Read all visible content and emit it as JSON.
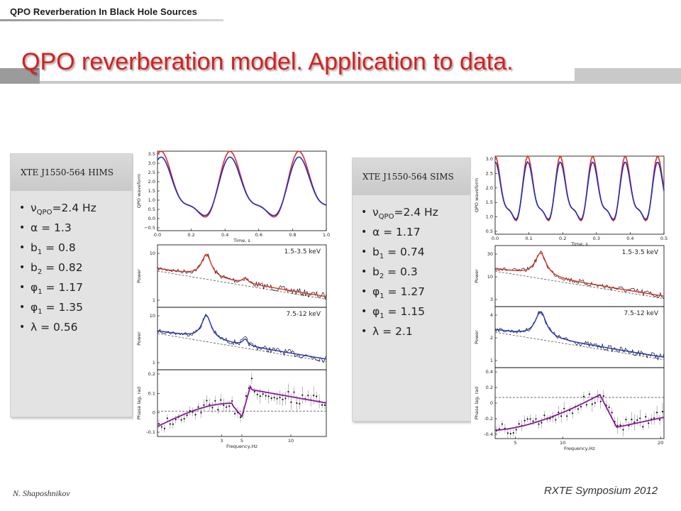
{
  "header": {
    "label": "QPO Reverberation In Black Hole Sources"
  },
  "title": "QPO reverberation model. Application to data.",
  "left_panel": {
    "heading": "XTE J1550-564 HIMS",
    "params": [
      {
        "sym": "ν",
        "sub": "QPO",
        "rest": "=2.4 Hz"
      },
      {
        "sym": "α",
        "sub": "",
        "rest": " = 1.3"
      },
      {
        "sym": "b",
        "sub": "1",
        "rest": " = 0.8"
      },
      {
        "sym": "b",
        "sub": "2",
        "rest": " = 0.82"
      },
      {
        "sym": "φ",
        "sub": "1",
        "rest": " = 1.17"
      },
      {
        "sym": "φ",
        "sub": "1",
        "rest": " = 1.35"
      },
      {
        "sym": "λ",
        "sub": "",
        "rest": " = 0.56"
      }
    ]
  },
  "right_panel": {
    "heading": "XTE J1550-564 SIMS",
    "params": [
      {
        "sym": "ν",
        "sub": "QPO",
        "rest": "=2.4 Hz"
      },
      {
        "sym": "α",
        "sub": "",
        "rest": " = 1.17"
      },
      {
        "sym": "b",
        "sub": "1",
        "rest": " = 0.74"
      },
      {
        "sym": "b",
        "sub": "2",
        "rest": " = 0.3"
      },
      {
        "sym": "φ",
        "sub": "1",
        "rest": " = 1.27"
      },
      {
        "sym": "φ",
        "sub": "1",
        "rest": " = 1.15"
      },
      {
        "sym": "λ",
        "sub": "",
        "rest": " = 2.1"
      }
    ]
  },
  "figures": {
    "left": {
      "wave": {
        "ylabel": "QPO waveform",
        "xlabel": "Time, s",
        "yticks": [
          "3.5",
          "3.0",
          "2.5",
          "2.0",
          "1.5",
          "1.0",
          "0.5",
          "0.0",
          "−0.5"
        ],
        "xticks": [
          "0.0",
          "0.2",
          "0.4",
          "0.6",
          "0.8",
          "1.0"
        ]
      },
      "psd1": {
        "ylabel": "Power",
        "band": "1.5-3.5 keV",
        "yticks": [
          "10",
          "1"
        ]
      },
      "psd2": {
        "ylabel": "Power",
        "band": "7.5-12 keV",
        "yticks": [
          "10",
          "1"
        ]
      },
      "lag": {
        "ylabel": "Phase lag, rad",
        "xlabel": "Frequency,Hz",
        "yticks": [
          "0.2",
          "0.1",
          "0",
          "-0.1"
        ],
        "xticks": [
          "3",
          "5",
          "10"
        ]
      }
    },
    "right": {
      "wave": {
        "ylabel": "QPO waveform",
        "xlabel": "Time, s",
        "yticks": [
          "3.0",
          "2.5",
          "2.0",
          "1.5",
          "1.0",
          "0.5"
        ],
        "xticks": [
          "0.0",
          "0.1",
          "0.2",
          "0.3",
          "0.4",
          "0.5"
        ]
      },
      "psd1": {
        "ylabel": "Power",
        "band": "1.5-3.5 keV",
        "yticks": [
          "30",
          "10",
          "3"
        ]
      },
      "psd2": {
        "ylabel": "Power",
        "band": "7.5-12 keV",
        "yticks": [
          "4",
          "2",
          "1"
        ]
      },
      "lag": {
        "ylabel": "Phase lag, rad",
        "xlabel": "Frequency,Hz",
        "yticks": [
          "0.4",
          "0.2",
          "0",
          "-0.2",
          "-0.4"
        ],
        "xticks": [
          "5",
          "10",
          "20"
        ]
      }
    }
  },
  "colors": {
    "title": "#d61f1f",
    "model_red": "#e03020",
    "model_blue": "#2030c0",
    "model_purple": "#8a1a9a"
  },
  "footer": {
    "author": "N. Shaposhnikov",
    "event": "RXTE Symposium 2012"
  }
}
